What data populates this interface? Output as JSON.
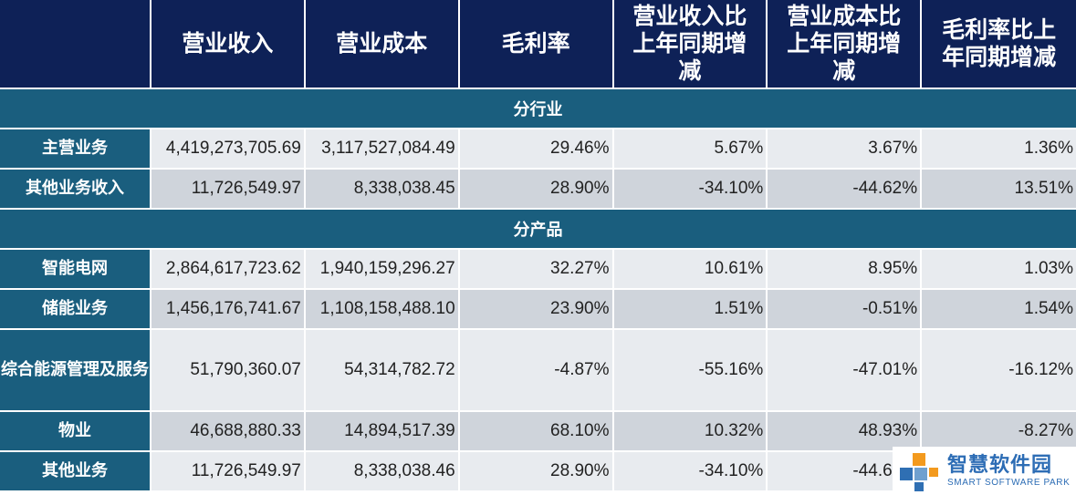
{
  "table": {
    "headers": [
      "",
      "营业收入",
      "营业成本",
      "毛利率",
      "营业收入比上年同期增减",
      "营业成本比上年同期增减",
      "毛利率比上年同期增减"
    ],
    "sections": [
      {
        "title": "分行业",
        "rows": [
          {
            "label": "主营业务",
            "values": [
              "4,419,273,705.69",
              "3,117,527,084.49",
              "29.46%",
              "5.67%",
              "3.67%",
              "1.36%"
            ]
          },
          {
            "label": "其他业务收入",
            "values": [
              "11,726,549.97",
              "8,338,038.45",
              "28.90%",
              "-34.10%",
              "-44.62%",
              "13.51%"
            ]
          }
        ]
      },
      {
        "title": "分产品",
        "rows": [
          {
            "label": "智能电网",
            "values": [
              "2,864,617,723.62",
              "1,940,159,296.27",
              "32.27%",
              "10.61%",
              "8.95%",
              "1.03%"
            ]
          },
          {
            "label": "储能业务",
            "values": [
              "1,456,176,741.67",
              "1,108,158,488.10",
              "23.90%",
              "1.51%",
              "-0.51%",
              "1.54%"
            ]
          },
          {
            "label": "综合能源管理及服务",
            "values": [
              "51,790,360.07",
              "54,314,782.72",
              "-4.87%",
              "-55.16%",
              "-47.01%",
              "-16.12%"
            ]
          },
          {
            "label": "物业",
            "values": [
              "46,688,880.33",
              "14,894,517.39",
              "68.10%",
              "10.32%",
              "48.93%",
              "-8.27%"
            ]
          },
          {
            "label": "其他业务",
            "values": [
              "11,726,549.97",
              "8,338,038.46",
              "28.90%",
              "-34.10%",
              "-44.62%",
              ""
            ]
          }
        ]
      }
    ]
  },
  "watermark": {
    "name_cn": "智慧软件园",
    "name_en": "SMART SOFTWARE PARK",
    "colors": {
      "orange": "#f39a1e",
      "blue": "#2f6fb3",
      "light_blue": "#6fa0cf"
    }
  },
  "colors": {
    "header_bg": "#0e2157",
    "label_bg": "#1a5e7e",
    "row_light": "#e8ebef",
    "row_dark": "#cfd4db"
  }
}
